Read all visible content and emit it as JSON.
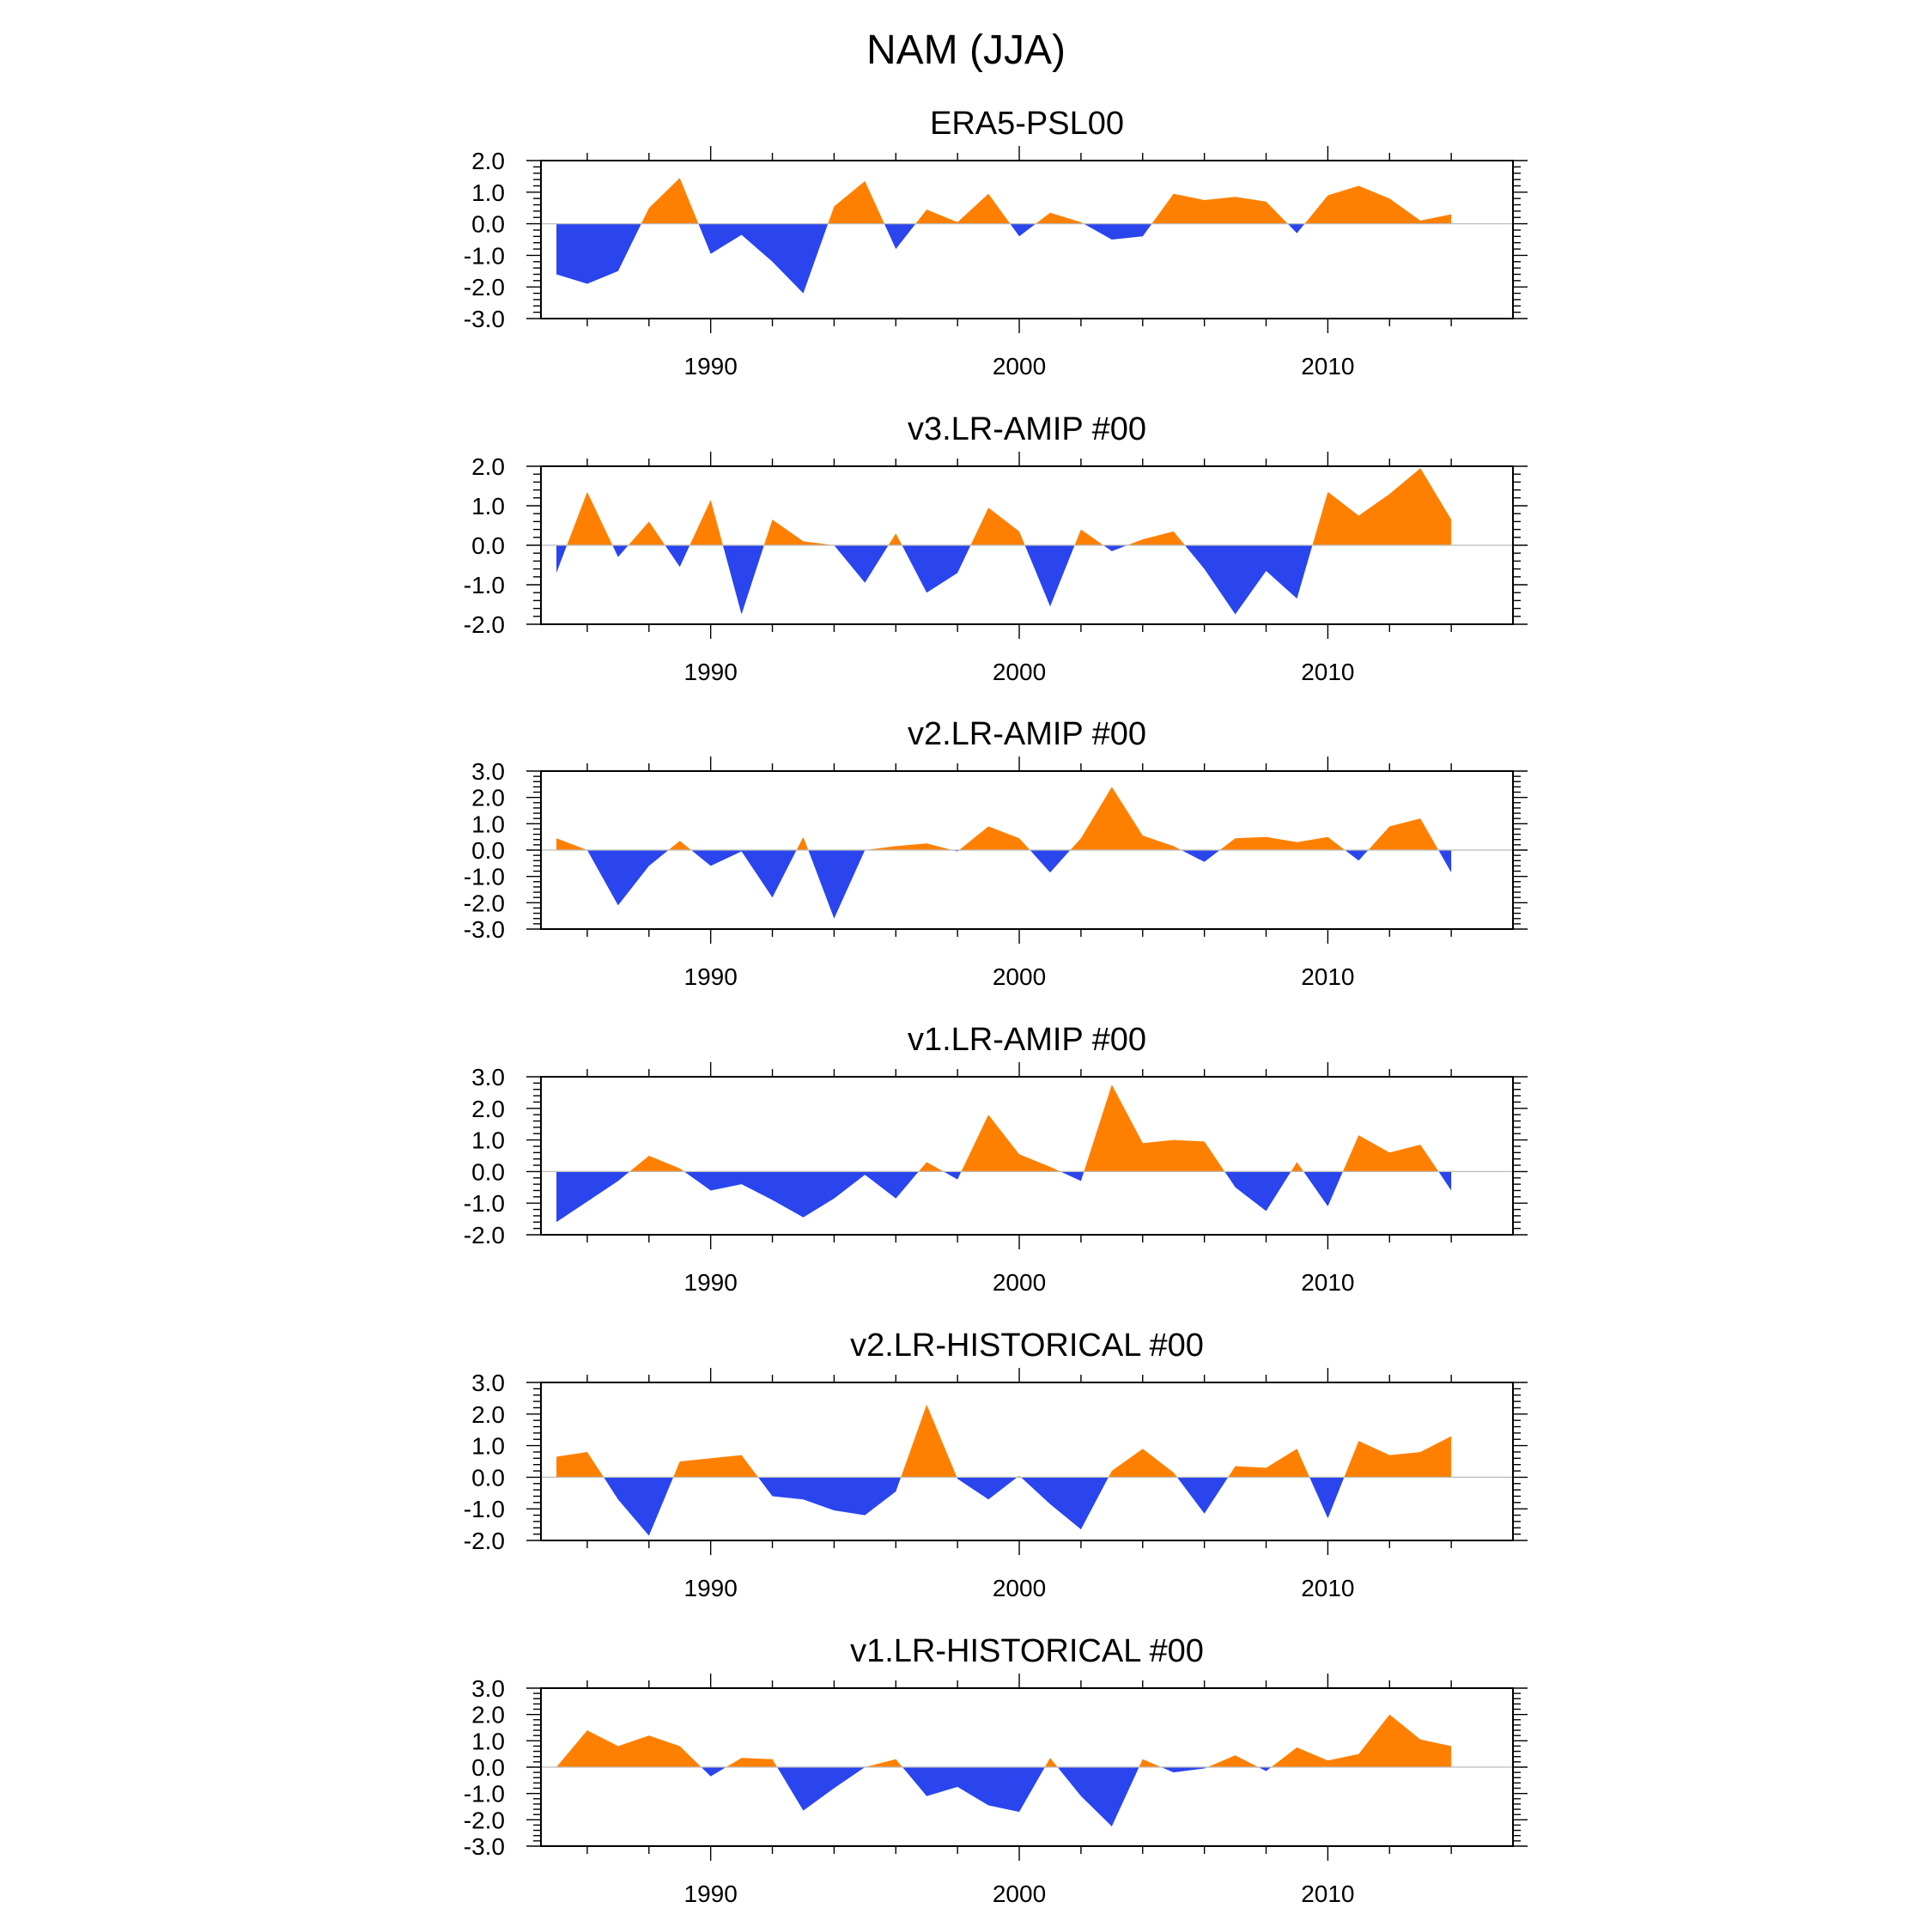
{
  "figure_title": "NAM (JJA)",
  "colors": {
    "positive": "#ff8000",
    "negative": "#2a45ee",
    "axis": "#000000",
    "zero_line": "#bbbbbb"
  },
  "chart_data": [
    {
      "type": "area",
      "title": "ERA5-PSL00",
      "x": [
        1985,
        1986,
        1987,
        1988,
        1989,
        1990,
        1991,
        1992,
        1993,
        1994,
        1995,
        1996,
        1997,
        1998,
        1999,
        2000,
        2001,
        2002,
        2003,
        2004,
        2005,
        2006,
        2007,
        2008,
        2009,
        2010,
        2011,
        2012,
        2013,
        2014
      ],
      "values": [
        -1.6,
        -1.9,
        -1.5,
        0.5,
        1.45,
        -0.95,
        -0.35,
        -1.2,
        -2.2,
        0.55,
        1.35,
        -0.8,
        0.45,
        0.05,
        0.95,
        -0.4,
        0.35,
        0.05,
        -0.5,
        -0.4,
        0.95,
        0.75,
        0.85,
        0.7,
        -0.3,
        0.9,
        1.2,
        0.8,
        0.1,
        0.3
      ],
      "xlim": [
        1984.5,
        2016
      ],
      "ylim": [
        -3,
        2
      ],
      "yticks": [
        -3.0,
        -2.0,
        -1.0,
        0.0,
        1.0,
        2.0
      ],
      "xticks": [
        1990,
        2000,
        2010
      ],
      "ytick_labels": [
        "-3.0",
        "-2.0",
        "-1.0",
        "0.0",
        "1.0",
        "2.0"
      ],
      "xtick_labels": [
        "1990",
        "2000",
        "2010"
      ]
    },
    {
      "type": "area",
      "title": "v3.LR-AMIP  #00",
      "x": [
        1985,
        1986,
        1987,
        1988,
        1989,
        1990,
        1991,
        1992,
        1993,
        1994,
        1995,
        1996,
        1997,
        1998,
        1999,
        2000,
        2001,
        2002,
        2003,
        2004,
        2005,
        2006,
        2007,
        2008,
        2009,
        2010,
        2011,
        2012,
        2013,
        2014
      ],
      "values": [
        -0.7,
        1.35,
        -0.3,
        0.6,
        -0.55,
        1.15,
        -1.75,
        0.65,
        0.1,
        0.0,
        -0.95,
        0.3,
        -1.2,
        -0.7,
        0.95,
        0.35,
        -1.55,
        0.4,
        -0.15,
        0.15,
        0.35,
        -0.6,
        -1.75,
        -0.65,
        -1.35,
        1.35,
        0.75,
        1.3,
        1.95,
        0.65
      ],
      "xlim": [
        1984.5,
        2016
      ],
      "ylim": [
        -2,
        2
      ],
      "yticks": [
        -2.0,
        -1.0,
        0.0,
        1.0,
        2.0
      ],
      "xticks": [
        1990,
        2000,
        2010
      ],
      "ytick_labels": [
        "-2.0",
        "-1.0",
        "0.0",
        "1.0",
        "2.0"
      ],
      "xtick_labels": [
        "1990",
        "2000",
        "2010"
      ]
    },
    {
      "type": "area",
      "title": "v2.LR-AMIP  #00",
      "x": [
        1985,
        1986,
        1987,
        1988,
        1989,
        1990,
        1991,
        1992,
        1993,
        1994,
        1995,
        1996,
        1997,
        1998,
        1999,
        2000,
        2001,
        2002,
        2003,
        2004,
        2005,
        2006,
        2007,
        2008,
        2009,
        2010,
        2011,
        2012,
        2013,
        2014
      ],
      "values": [
        0.45,
        0.0,
        -2.1,
        -0.6,
        0.35,
        -0.6,
        -0.05,
        -1.8,
        0.5,
        -2.6,
        0.0,
        0.15,
        0.25,
        -0.05,
        0.9,
        0.45,
        -0.85,
        0.45,
        2.4,
        0.55,
        0.15,
        -0.45,
        0.45,
        0.5,
        0.3,
        0.5,
        -0.4,
        0.9,
        1.2,
        -0.85
      ],
      "xlim": [
        1984.5,
        2016
      ],
      "ylim": [
        -3,
        3
      ],
      "yticks": [
        -3.0,
        -2.0,
        -1.0,
        0.0,
        1.0,
        2.0,
        3.0
      ],
      "xticks": [
        1990,
        2000,
        2010
      ],
      "ytick_labels": [
        "-3.0",
        "-2.0",
        "-1.0",
        "0.0",
        "1.0",
        "2.0",
        "3.0"
      ],
      "xtick_labels": [
        "1990",
        "2000",
        "2010"
      ]
    },
    {
      "type": "area",
      "title": "v1.LR-AMIP  #00",
      "x": [
        1985,
        1986,
        1987,
        1988,
        1989,
        1990,
        1991,
        1992,
        1993,
        1994,
        1995,
        1996,
        1997,
        1998,
        1999,
        2000,
        2001,
        2002,
        2003,
        2004,
        2005,
        2006,
        2007,
        2008,
        2009,
        2010,
        2011,
        2012,
        2013,
        2014
      ],
      "values": [
        -1.6,
        -0.95,
        -0.3,
        0.5,
        0.1,
        -0.6,
        -0.4,
        -0.9,
        -1.45,
        -0.85,
        -0.1,
        -0.85,
        0.3,
        -0.25,
        1.8,
        0.55,
        0.15,
        -0.3,
        2.75,
        0.9,
        1.0,
        0.95,
        -0.5,
        -1.25,
        0.3,
        -1.1,
        1.15,
        0.6,
        0.85,
        -0.6
      ],
      "xlim": [
        1984.5,
        2016
      ],
      "ylim": [
        -2,
        3
      ],
      "yticks": [
        -2.0,
        -1.0,
        0.0,
        1.0,
        2.0,
        3.0
      ],
      "xticks": [
        1990,
        2000,
        2010
      ],
      "ytick_labels": [
        "-2.0",
        "-1.0",
        "0.0",
        "1.0",
        "2.0",
        "3.0"
      ],
      "xtick_labels": [
        "1990",
        "2000",
        "2010"
      ]
    },
    {
      "type": "area",
      "title": "v2.LR-HISTORICAL  #00",
      "x": [
        1985,
        1986,
        1987,
        1988,
        1989,
        1990,
        1991,
        1992,
        1993,
        1994,
        1995,
        1996,
        1997,
        1998,
        1999,
        2000,
        2001,
        2002,
        2003,
        2004,
        2005,
        2006,
        2007,
        2008,
        2009,
        2010,
        2011,
        2012,
        2013,
        2014
      ],
      "values": [
        0.65,
        0.8,
        -0.7,
        -1.85,
        0.5,
        0.6,
        0.7,
        -0.6,
        -0.7,
        -1.05,
        -1.2,
        -0.45,
        2.3,
        -0.05,
        -0.7,
        0.05,
        -0.85,
        -1.65,
        0.2,
        0.9,
        0.15,
        -1.15,
        0.35,
        0.3,
        0.9,
        -1.3,
        1.15,
        0.7,
        0.8,
        1.3
      ],
      "xlim": [
        1984.5,
        2016
      ],
      "ylim": [
        -2,
        3
      ],
      "yticks": [
        -2.0,
        -1.0,
        0.0,
        1.0,
        2.0,
        3.0
      ],
      "xticks": [
        1990,
        2000,
        2010
      ],
      "ytick_labels": [
        "-2.0",
        "-1.0",
        "0.0",
        "1.0",
        "2.0",
        "3.0"
      ],
      "xtick_labels": [
        "1990",
        "2000",
        "2010"
      ]
    },
    {
      "type": "area",
      "title": "v1.LR-HISTORICAL  #00",
      "x": [
        1985,
        1986,
        1987,
        1988,
        1989,
        1990,
        1991,
        1992,
        1993,
        1994,
        1995,
        1996,
        1997,
        1998,
        1999,
        2000,
        2001,
        2002,
        2003,
        2004,
        2005,
        2006,
        2007,
        2008,
        2009,
        2010,
        2011,
        2012,
        2013,
        2014
      ],
      "values": [
        0.0,
        1.4,
        0.8,
        1.2,
        0.8,
        -0.35,
        0.35,
        0.3,
        -1.65,
        -0.8,
        0.0,
        0.3,
        -1.1,
        -0.75,
        -1.45,
        -1.7,
        0.35,
        -1.1,
        -2.25,
        0.3,
        -0.2,
        -0.05,
        0.45,
        -0.15,
        0.75,
        0.25,
        0.5,
        2.0,
        1.05,
        0.8
      ],
      "xlim": [
        1984.5,
        2016
      ],
      "ylim": [
        -3,
        3
      ],
      "yticks": [
        -3.0,
        -2.0,
        -1.0,
        0.0,
        1.0,
        2.0,
        3.0
      ],
      "xticks": [
        1990,
        2000,
        2010
      ],
      "ytick_labels": [
        "-3.0",
        "-2.0",
        "-1.0",
        "0.0",
        "1.0",
        "2.0",
        "3.0"
      ],
      "xtick_labels": [
        "1990",
        "2000",
        "2010"
      ]
    }
  ]
}
